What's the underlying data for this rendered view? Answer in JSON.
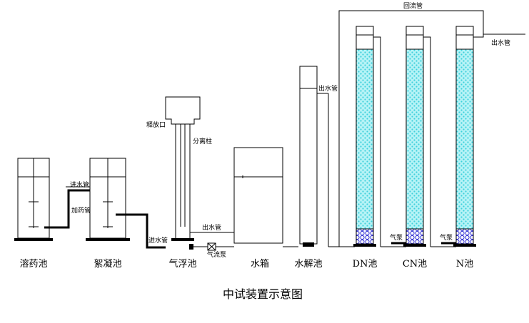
{
  "diagram": {
    "units": [
      {
        "id": "dosing-tank",
        "name": "溶药池"
      },
      {
        "id": "coagulation-tank",
        "name": "絮凝池"
      },
      {
        "id": "air-flotation-tank",
        "name": "气浮池"
      },
      {
        "id": "water-tank",
        "name": "水箱"
      },
      {
        "id": "hydrolysis-tank",
        "name": "水解池"
      },
      {
        "id": "dn-tank",
        "name": "DN池"
      },
      {
        "id": "cn-tank",
        "name": "CN池"
      },
      {
        "id": "n-tank",
        "name": "N池"
      }
    ],
    "labels": {
      "inlet_pipe_coag": "进水管",
      "dosing_pipe": "加药管",
      "inlet_pipe_flot": "进水管",
      "separation_column": "分离柱",
      "release_valve": "释放口",
      "outlet_pipe_flot": "出水管",
      "gas_valve": "气流泵",
      "outlet_pipe_hydro": "出水管",
      "return_pipe": "回流管",
      "outlet_pipe_final": "出水管",
      "aeration_cn": "气泵",
      "aeration_n": "气泵"
    },
    "caption": "中试装置示意图"
  }
}
